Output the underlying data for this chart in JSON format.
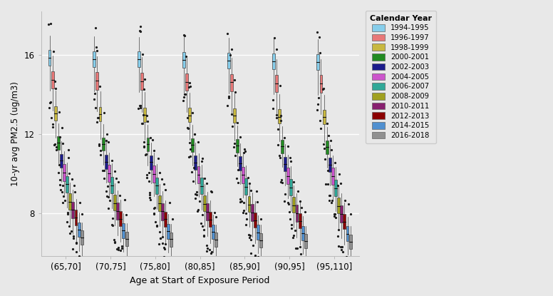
{
  "age_groups": [
    "(65,70]",
    "(70,75]",
    "(75,80]",
    "(80,85]",
    "(85,90]",
    "(90,95]",
    "(95,110]"
  ],
  "calendar_years": [
    "1994-1995",
    "1996-1997",
    "1998-1999",
    "2000-2001",
    "2002-2003",
    "2004-2005",
    "2006-2007",
    "2008-2009",
    "2010-2011",
    "2012-2013",
    "2014-2015",
    "2016-2018"
  ],
  "colors": [
    "#87CEEB",
    "#E87878",
    "#C8B840",
    "#228B22",
    "#1C1C8C",
    "#CC55CC",
    "#30A898",
    "#A0A020",
    "#882070",
    "#8B0000",
    "#5090D0",
    "#909090"
  ],
  "ylabel": "10-yr avg PM2.5 (ug/m3)",
  "xlabel": "Age at Start of Exposure Period",
  "legend_title": "Calendar Year",
  "bg_color": "#E8E8E8",
  "ylim": [
    5.8,
    18.2
  ],
  "yticks": [
    8,
    12,
    16
  ],
  "medians": [
    [
      15.85,
      15.8,
      15.78,
      15.75,
      15.72,
      15.68,
      15.65
    ],
    [
      14.75,
      14.7,
      14.68,
      14.65,
      14.62,
      14.58,
      14.55
    ],
    [
      13.05,
      13.0,
      12.98,
      12.95,
      12.92,
      12.88,
      12.85
    ],
    [
      11.55,
      11.5,
      11.48,
      11.45,
      11.42,
      11.38,
      11.35
    ],
    [
      10.65,
      10.6,
      10.58,
      10.55,
      10.52,
      10.48,
      10.45
    ],
    [
      10.05,
      10.0,
      9.98,
      9.95,
      9.92,
      9.88,
      9.85
    ],
    [
      9.45,
      9.4,
      9.38,
      9.35,
      9.32,
      9.28,
      9.25
    ],
    [
      8.55,
      8.5,
      8.48,
      8.45,
      8.42,
      8.38,
      8.35
    ],
    [
      8.15,
      8.1,
      8.08,
      8.05,
      8.02,
      7.98,
      7.95
    ],
    [
      7.75,
      7.7,
      7.68,
      7.65,
      7.62,
      7.58,
      7.55
    ],
    [
      7.15,
      7.1,
      7.08,
      7.05,
      7.02,
      6.98,
      6.95
    ],
    [
      6.75,
      6.7,
      6.68,
      6.65,
      6.62,
      6.58,
      6.55
    ]
  ],
  "q1": [
    [
      15.45,
      15.4,
      15.38,
      15.35,
      15.32,
      15.28,
      15.25
    ],
    [
      14.3,
      14.25,
      14.22,
      14.2,
      14.17,
      14.13,
      14.1
    ],
    [
      12.7,
      12.65,
      12.62,
      12.6,
      12.57,
      12.53,
      12.5
    ],
    [
      11.2,
      11.15,
      11.12,
      11.1,
      11.07,
      11.03,
      11.0
    ],
    [
      10.28,
      10.23,
      10.2,
      10.18,
      10.15,
      10.11,
      10.08
    ],
    [
      9.62,
      9.57,
      9.54,
      9.52,
      9.49,
      9.45,
      9.42
    ],
    [
      9.05,
      9.0,
      8.97,
      8.95,
      8.92,
      8.88,
      8.85
    ],
    [
      8.18,
      8.13,
      8.1,
      8.08,
      8.05,
      8.01,
      7.98
    ],
    [
      7.72,
      7.67,
      7.64,
      7.62,
      7.59,
      7.55,
      7.52
    ],
    [
      7.38,
      7.33,
      7.3,
      7.28,
      7.25,
      7.21,
      7.18
    ],
    [
      6.78,
      6.73,
      6.7,
      6.68,
      6.65,
      6.61,
      6.58
    ],
    [
      6.38,
      6.33,
      6.3,
      6.28,
      6.25,
      6.21,
      6.18
    ]
  ],
  "q3": [
    [
      16.25,
      16.2,
      16.18,
      16.15,
      16.12,
      16.08,
      16.05
    ],
    [
      15.18,
      15.13,
      15.1,
      15.08,
      15.05,
      15.01,
      14.98
    ],
    [
      13.42,
      13.37,
      13.34,
      13.32,
      13.29,
      13.25,
      13.22
    ],
    [
      11.88,
      11.83,
      11.8,
      11.78,
      11.75,
      11.71,
      11.68
    ],
    [
      11.0,
      10.95,
      10.92,
      10.9,
      10.87,
      10.83,
      10.8
    ],
    [
      10.48,
      10.43,
      10.4,
      10.38,
      10.35,
      10.31,
      10.28
    ],
    [
      9.88,
      9.83,
      9.8,
      9.78,
      9.75,
      9.71,
      9.68
    ],
    [
      8.98,
      8.93,
      8.9,
      8.88,
      8.85,
      8.81,
      8.78
    ],
    [
      8.58,
      8.53,
      8.5,
      8.48,
      8.45,
      8.41,
      8.38
    ],
    [
      8.15,
      8.1,
      8.07,
      8.05,
      8.02,
      7.98,
      7.95
    ],
    [
      7.52,
      7.47,
      7.44,
      7.42,
      7.39,
      7.35,
      7.32
    ],
    [
      7.1,
      7.05,
      7.02,
      7.0,
      6.97,
      6.93,
      6.9
    ]
  ],
  "whisker_lo": [
    [
      14.2,
      14.15,
      14.12,
      14.1,
      14.07,
      14.03,
      14.0
    ],
    [
      13.2,
      13.15,
      13.12,
      13.1,
      13.07,
      13.03,
      13.0
    ],
    [
      11.8,
      11.75,
      11.72,
      11.7,
      11.67,
      11.63,
      11.6
    ],
    [
      10.5,
      10.45,
      10.42,
      10.4,
      10.37,
      10.33,
      10.3
    ],
    [
      9.58,
      9.53,
      9.5,
      9.48,
      9.45,
      9.41,
      9.38
    ],
    [
      8.92,
      8.87,
      8.84,
      8.82,
      8.79,
      8.75,
      8.72
    ],
    [
      8.28,
      8.23,
      8.2,
      8.18,
      8.15,
      8.11,
      8.08
    ],
    [
      7.42,
      7.37,
      7.34,
      7.32,
      7.29,
      7.25,
      7.22
    ],
    [
      6.92,
      6.87,
      6.84,
      6.82,
      6.79,
      6.75,
      6.72
    ],
    [
      6.58,
      6.53,
      6.5,
      6.48,
      6.45,
      6.41,
      6.38
    ],
    [
      6.08,
      6.03,
      6.0,
      5.98,
      5.95,
      5.91,
      5.88
    ],
    [
      5.78,
      5.73,
      5.7,
      5.68,
      5.65,
      5.61,
      5.58
    ]
  ],
  "whisker_hi": [
    [
      17.0,
      16.95,
      16.92,
      16.9,
      16.87,
      16.83,
      16.8
    ],
    [
      15.98,
      15.93,
      15.9,
      15.88,
      15.85,
      15.81,
      15.78
    ],
    [
      14.2,
      14.15,
      14.12,
      14.1,
      14.07,
      14.03,
      14.0
    ],
    [
      12.55,
      12.5,
      12.47,
      12.45,
      12.42,
      12.38,
      12.35
    ],
    [
      11.65,
      11.6,
      11.57,
      11.55,
      11.52,
      11.48,
      11.45
    ],
    [
      11.12,
      11.07,
      11.04,
      11.02,
      10.99,
      10.95,
      10.92
    ],
    [
      10.55,
      10.5,
      10.47,
      10.45,
      10.42,
      10.38,
      10.35
    ],
    [
      9.55,
      9.5,
      9.47,
      9.45,
      9.42,
      9.38,
      9.35
    ],
    [
      9.18,
      9.13,
      9.1,
      9.08,
      9.05,
      9.01,
      8.98
    ],
    [
      8.72,
      8.67,
      8.64,
      8.62,
      8.59,
      8.55,
      8.52
    ],
    [
      8.02,
      7.97,
      7.94,
      7.92,
      7.89,
      7.85,
      7.82
    ],
    [
      7.52,
      7.47,
      7.44,
      7.42,
      7.39,
      7.35,
      7.32
    ]
  ],
  "outliers_hi_count": [
    [
      2,
      1,
      3,
      2,
      1,
      1,
      2
    ],
    [
      1,
      2,
      1,
      1,
      2,
      1,
      1
    ],
    [
      2,
      1,
      2,
      3,
      2,
      1,
      2
    ],
    [
      1,
      1,
      2,
      1,
      1,
      2,
      1
    ],
    [
      2,
      2,
      1,
      2,
      1,
      1,
      2
    ],
    [
      1,
      1,
      2,
      1,
      2,
      1,
      1
    ],
    [
      2,
      1,
      1,
      2,
      1,
      2,
      1
    ],
    [
      1,
      2,
      1,
      1,
      2,
      1,
      2
    ],
    [
      2,
      1,
      2,
      1,
      1,
      1,
      1
    ],
    [
      1,
      1,
      1,
      2,
      1,
      1,
      1
    ],
    [
      1,
      1,
      1,
      1,
      1,
      1,
      1
    ],
    [
      1,
      1,
      1,
      1,
      1,
      1,
      1
    ]
  ],
  "outliers_lo_count": [
    [
      3,
      3,
      4,
      4,
      3,
      2,
      3
    ],
    [
      3,
      3,
      3,
      3,
      2,
      3,
      2
    ],
    [
      4,
      4,
      5,
      4,
      3,
      3,
      3
    ],
    [
      3,
      3,
      4,
      3,
      3,
      3,
      3
    ],
    [
      4,
      3,
      4,
      4,
      3,
      2,
      3
    ],
    [
      3,
      3,
      4,
      3,
      3,
      3,
      3
    ],
    [
      3,
      3,
      3,
      3,
      3,
      3,
      3
    ],
    [
      3,
      3,
      4,
      3,
      3,
      3,
      3
    ],
    [
      3,
      3,
      3,
      3,
      3,
      2,
      3
    ],
    [
      3,
      3,
      3,
      3,
      3,
      2,
      3
    ],
    [
      2,
      2,
      3,
      2,
      2,
      2,
      2
    ],
    [
      2,
      2,
      3,
      2,
      2,
      2,
      2
    ]
  ]
}
